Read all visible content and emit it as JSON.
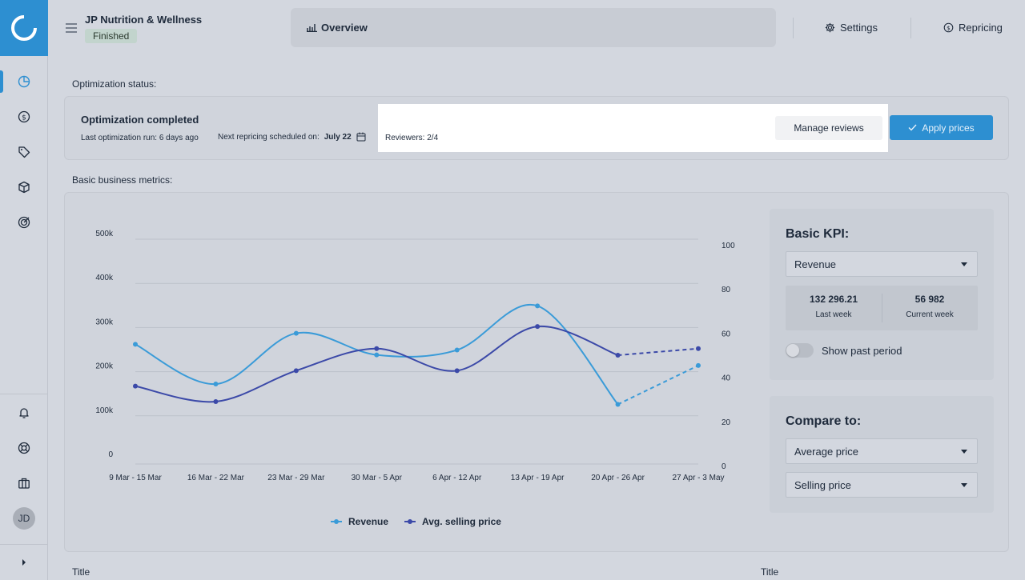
{
  "header": {
    "company": "JP Nutrition & Wellness",
    "status": "Finished",
    "tabs": {
      "overview": "Overview",
      "settings": "Settings",
      "repricing": "Repricing"
    }
  },
  "sidebar": {
    "avatar_initials": "JD",
    "nav": [
      "chart-pie-icon",
      "dollar-circle-icon",
      "tag-icon",
      "box-icon",
      "target-icon"
    ],
    "bottom": [
      "bell-icon",
      "lifebuoy-icon",
      "briefcase-icon"
    ]
  },
  "optimization": {
    "section_label": "Optimization status:",
    "title": "Optimization completed",
    "last_run": "Last optimization run: 6 days ago",
    "next_prefix": "Next repricing scheduled on:",
    "next_date": "July 22",
    "reviewers": "Reviewers: 2/4",
    "manage_label": "Manage reviews",
    "apply_label": "Apply prices"
  },
  "metrics": {
    "section_label": "Basic business metrics:",
    "kpi": {
      "title": "Basic KPI:",
      "selected": "Revenue",
      "last_week_value": "132 296.21",
      "last_week_label": "Last week",
      "current_week_value": "56 982",
      "current_week_label": "Current week",
      "toggle_label": "Show past period",
      "toggle_on": false
    },
    "compare": {
      "title": "Compare to:",
      "first": "Average price",
      "second": "Selling price"
    }
  },
  "chart_data": {
    "type": "line",
    "categories": [
      "9 Mar - 15 Mar",
      "16 Mar - 22 Mar",
      "23 Mar - 29 Mar",
      "30 Mar - 5 Apr",
      "6 Apr - 12 Apr",
      "13 Apr - 19 Apr",
      "20 Apr - 26 Apr",
      "27 Apr - 3 May"
    ],
    "left_axis": {
      "ticks": [
        "0",
        "100k",
        "200k",
        "300k",
        "400k",
        "500k"
      ],
      "range": [
        0,
        500000
      ]
    },
    "right_axis": {
      "ticks": [
        "0",
        "20",
        "40",
        "60",
        "80",
        "100"
      ],
      "range": [
        0,
        100
      ]
    },
    "series": [
      {
        "name": "Revenue",
        "axis": "left",
        "color": "#3a9bd8",
        "values": [
          262000,
          172000,
          287000,
          238000,
          249000,
          349000,
          126000,
          214000
        ],
        "forecast_from_index": 6
      },
      {
        "name": "Avg. selling price",
        "axis": "right",
        "color": "#3b49a8",
        "values": [
          36,
          29,
          43,
          53,
          43,
          63,
          50,
          53
        ],
        "forecast_from_index": 6
      }
    ],
    "grid": true,
    "legend_position": "bottom"
  },
  "bottom": {
    "left_title": "Title",
    "right_title": "Title"
  }
}
